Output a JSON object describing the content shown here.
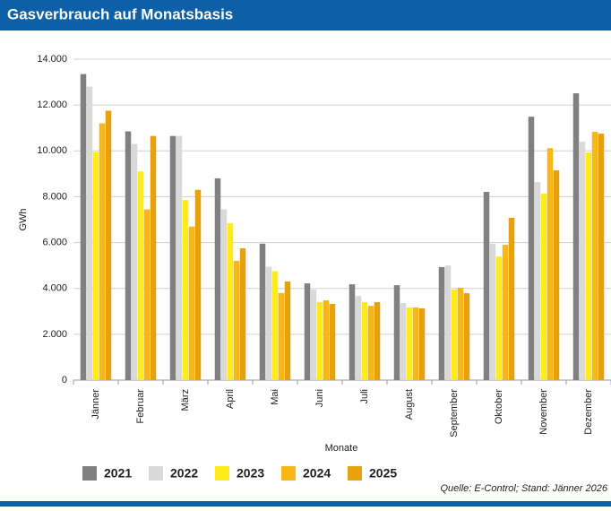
{
  "chart_data": {
    "type": "bar",
    "title": "Gasverbrauch auf Monatsbasis",
    "y_label": "GWh",
    "x_label": "Monate",
    "source": "Quelle: E-Control; Stand: Jänner 2026",
    "categories": [
      "Jänner",
      "Februar",
      "März",
      "April",
      "Mai",
      "Juni",
      "Juli",
      "August",
      "September",
      "Oktober",
      "November",
      "Dezember"
    ],
    "series": [
      {
        "name": "2021",
        "color": "#808080",
        "values": [
          13350,
          10850,
          10650,
          8800,
          5950,
          4220,
          4180,
          4140,
          4930,
          8210,
          11490,
          12510
        ]
      },
      {
        "name": "2022",
        "color": "#d9d9d9",
        "values": [
          12800,
          10300,
          10650,
          7450,
          4950,
          3950,
          3670,
          3360,
          5000,
          5940,
          8640,
          10400
        ]
      },
      {
        "name": "2023",
        "color": "#ffea1a",
        "values": [
          9950,
          9100,
          7850,
          6850,
          4750,
          3400,
          3400,
          3170,
          3950,
          5390,
          8130,
          9930
        ]
      },
      {
        "name": "2024",
        "color": "#f7b718",
        "values": [
          11200,
          7450,
          6700,
          5200,
          3800,
          3480,
          3240,
          3170,
          4030,
          5900,
          10120,
          10830
        ]
      },
      {
        "name": "2025",
        "color": "#e8a00c",
        "values": [
          11750,
          10650,
          8300,
          5750,
          4300,
          3320,
          3400,
          3130,
          3790,
          7080,
          9150,
          10750
        ]
      }
    ],
    "ylim": [
      0,
      14000
    ],
    "yticks": [
      {
        "value": 0,
        "label": "0"
      },
      {
        "value": 2000,
        "label": "2.000"
      },
      {
        "value": 4000,
        "label": "4.000"
      },
      {
        "value": 6000,
        "label": "6.000"
      },
      {
        "value": 8000,
        "label": "8.000"
      },
      {
        "value": 10000,
        "label": "10.000"
      },
      {
        "value": 12000,
        "label": "12.000"
      },
      {
        "value": 14000,
        "label": "14.000"
      }
    ],
    "grid": true
  }
}
